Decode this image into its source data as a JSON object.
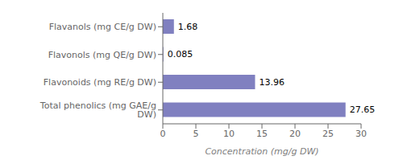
{
  "chart_data": {
    "type": "bar",
    "orientation": "horizontal",
    "categories": [
      "Total phenolics (mg GAE/g DW)",
      "Flavonoids (mg RE/g DW)",
      "Flavonols (mg QE/g DW)",
      "Flavanols (mg CE/g DW)"
    ],
    "values": [
      27.65,
      13.96,
      0.085,
      1.68
    ],
    "color": "#8080c0",
    "xlabel": "Concentration (mg/g DW)",
    "xlim": [
      0,
      30
    ],
    "xticks": [
      0,
      5,
      10,
      15,
      20,
      25,
      30
    ],
    "grid": false,
    "data_labels": true
  }
}
